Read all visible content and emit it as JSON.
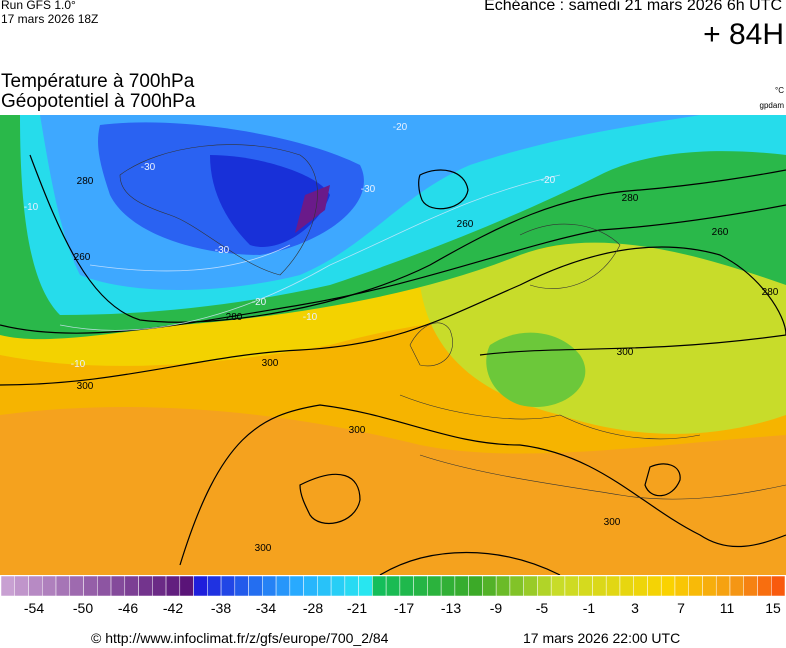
{
  "header": {
    "run": "Run GFS 1.0°",
    "run_date": "17 mars 2026 18Z",
    "forecast": "Echéance : samedi 21 mars 2026 6h UTC",
    "lead": "+ 84H"
  },
  "titles": {
    "line1": "Température à 700hPa",
    "line2": "Géopotentiel à 700hPa",
    "unit1": "°C",
    "unit2": "gpdam"
  },
  "map": {
    "contour_labels": [
      "260",
      "280",
      "280",
      "300",
      "300",
      "300",
      "300",
      "300",
      "280",
      "260",
      "300",
      "280",
      "260"
    ],
    "isotherm_labels": [
      "-30",
      "-30",
      "-30",
      "-20",
      "-20",
      "-10",
      "-10",
      "-10",
      "-20"
    ]
  },
  "colorbar": {
    "labels": [
      -54,
      -50,
      -46,
      -42,
      -38,
      -34,
      -28,
      -21,
      -17,
      -13,
      -9,
      -5,
      -1,
      3,
      7,
      11,
      15
    ]
  },
  "footer": {
    "source": "© http://www.infoclimat.fr/z/gfs/europe/700_2/84",
    "generated": "17 mars 2026 22:00 UTC"
  }
}
